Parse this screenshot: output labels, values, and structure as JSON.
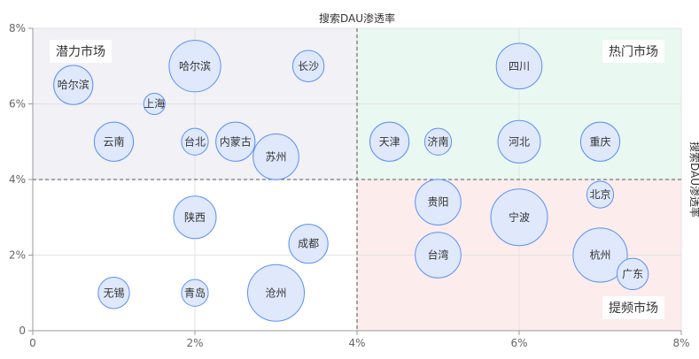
{
  "chart_data": {
    "type": "scatter",
    "title": "",
    "x_axis": {
      "min": 0,
      "max": 8,
      "ticks": [
        {
          "v": 0,
          "label": "0"
        },
        {
          "v": 2,
          "label": "2%"
        },
        {
          "v": 4,
          "label": "4%"
        },
        {
          "v": 6,
          "label": "6%"
        },
        {
          "v": 8,
          "label": "8%"
        }
      ]
    },
    "y_axis": {
      "min": 0,
      "max": 8,
      "ticks": [
        {
          "v": 0,
          "label": "0"
        },
        {
          "v": 2,
          "label": "2%"
        },
        {
          "v": 4,
          "label": "4%"
        },
        {
          "v": 6,
          "label": "6%"
        },
        {
          "v": 8,
          "label": "8%"
        }
      ]
    },
    "mark_x": 4,
    "mark_y": 4,
    "top_axis_label": "搜索DAU渗透率",
    "right_axis_label": "搜索DAU渗透率",
    "grid": true,
    "quadrants": [
      {
        "label": "潜力市场",
        "position": "top-left",
        "color": "#f1f1f6"
      },
      {
        "label": "热门市场",
        "position": "top-right",
        "color": "#e9f8f1"
      },
      {
        "label": "提频市场",
        "position": "bottom-right",
        "color": "#fdecec"
      },
      {
        "label": "",
        "position": "bottom-left",
        "color": "#ffffff"
      }
    ],
    "bubble_style": {
      "fill": "#dfe9fb",
      "stroke": "#5b8ff9"
    },
    "points": [
      {
        "name": "哈尔滨",
        "x": 0.5,
        "y": 6.5,
        "size": 3
      },
      {
        "name": "哈尔滨",
        "x": 2.0,
        "y": 7.0,
        "size": 5
      },
      {
        "name": "长沙",
        "x": 3.4,
        "y": 7.0,
        "size": 2
      },
      {
        "name": "上海",
        "x": 1.5,
        "y": 6.0,
        "size": 1
      },
      {
        "name": "云南",
        "x": 1.0,
        "y": 5.0,
        "size": 3
      },
      {
        "name": "台北",
        "x": 2.0,
        "y": 5.0,
        "size": 1.5
      },
      {
        "name": "内蒙古",
        "x": 2.5,
        "y": 5.0,
        "size": 3
      },
      {
        "name": "苏州",
        "x": 3.0,
        "y": 4.6,
        "size": 4
      },
      {
        "name": "四川",
        "x": 6.0,
        "y": 7.0,
        "size": 4
      },
      {
        "name": "天津",
        "x": 4.4,
        "y": 5.0,
        "size": 3
      },
      {
        "name": "济南",
        "x": 5.0,
        "y": 5.0,
        "size": 1.5
      },
      {
        "name": "河北",
        "x": 6.0,
        "y": 5.0,
        "size": 3.5
      },
      {
        "name": "重庆",
        "x": 7.0,
        "y": 5.0,
        "size": 3
      },
      {
        "name": "陕西",
        "x": 2.0,
        "y": 3.0,
        "size": 3.5
      },
      {
        "name": "成都",
        "x": 3.4,
        "y": 2.3,
        "size": 3
      },
      {
        "name": "无锡",
        "x": 1.0,
        "y": 1.0,
        "size": 2
      },
      {
        "name": "青岛",
        "x": 2.0,
        "y": 1.0,
        "size": 1.5
      },
      {
        "name": "沧州",
        "x": 3.0,
        "y": 1.0,
        "size": 6
      },
      {
        "name": "贵阳",
        "x": 5.0,
        "y": 3.4,
        "size": 4
      },
      {
        "name": "宁波",
        "x": 6.0,
        "y": 3.0,
        "size": 6
      },
      {
        "name": "北京",
        "x": 7.0,
        "y": 3.6,
        "size": 1.5
      },
      {
        "name": "台湾",
        "x": 5.0,
        "y": 2.0,
        "size": 4
      },
      {
        "name": "杭州",
        "x": 7.0,
        "y": 2.0,
        "size": 5.5
      },
      {
        "name": "广东",
        "x": 7.4,
        "y": 1.5,
        "size": 2
      }
    ]
  }
}
